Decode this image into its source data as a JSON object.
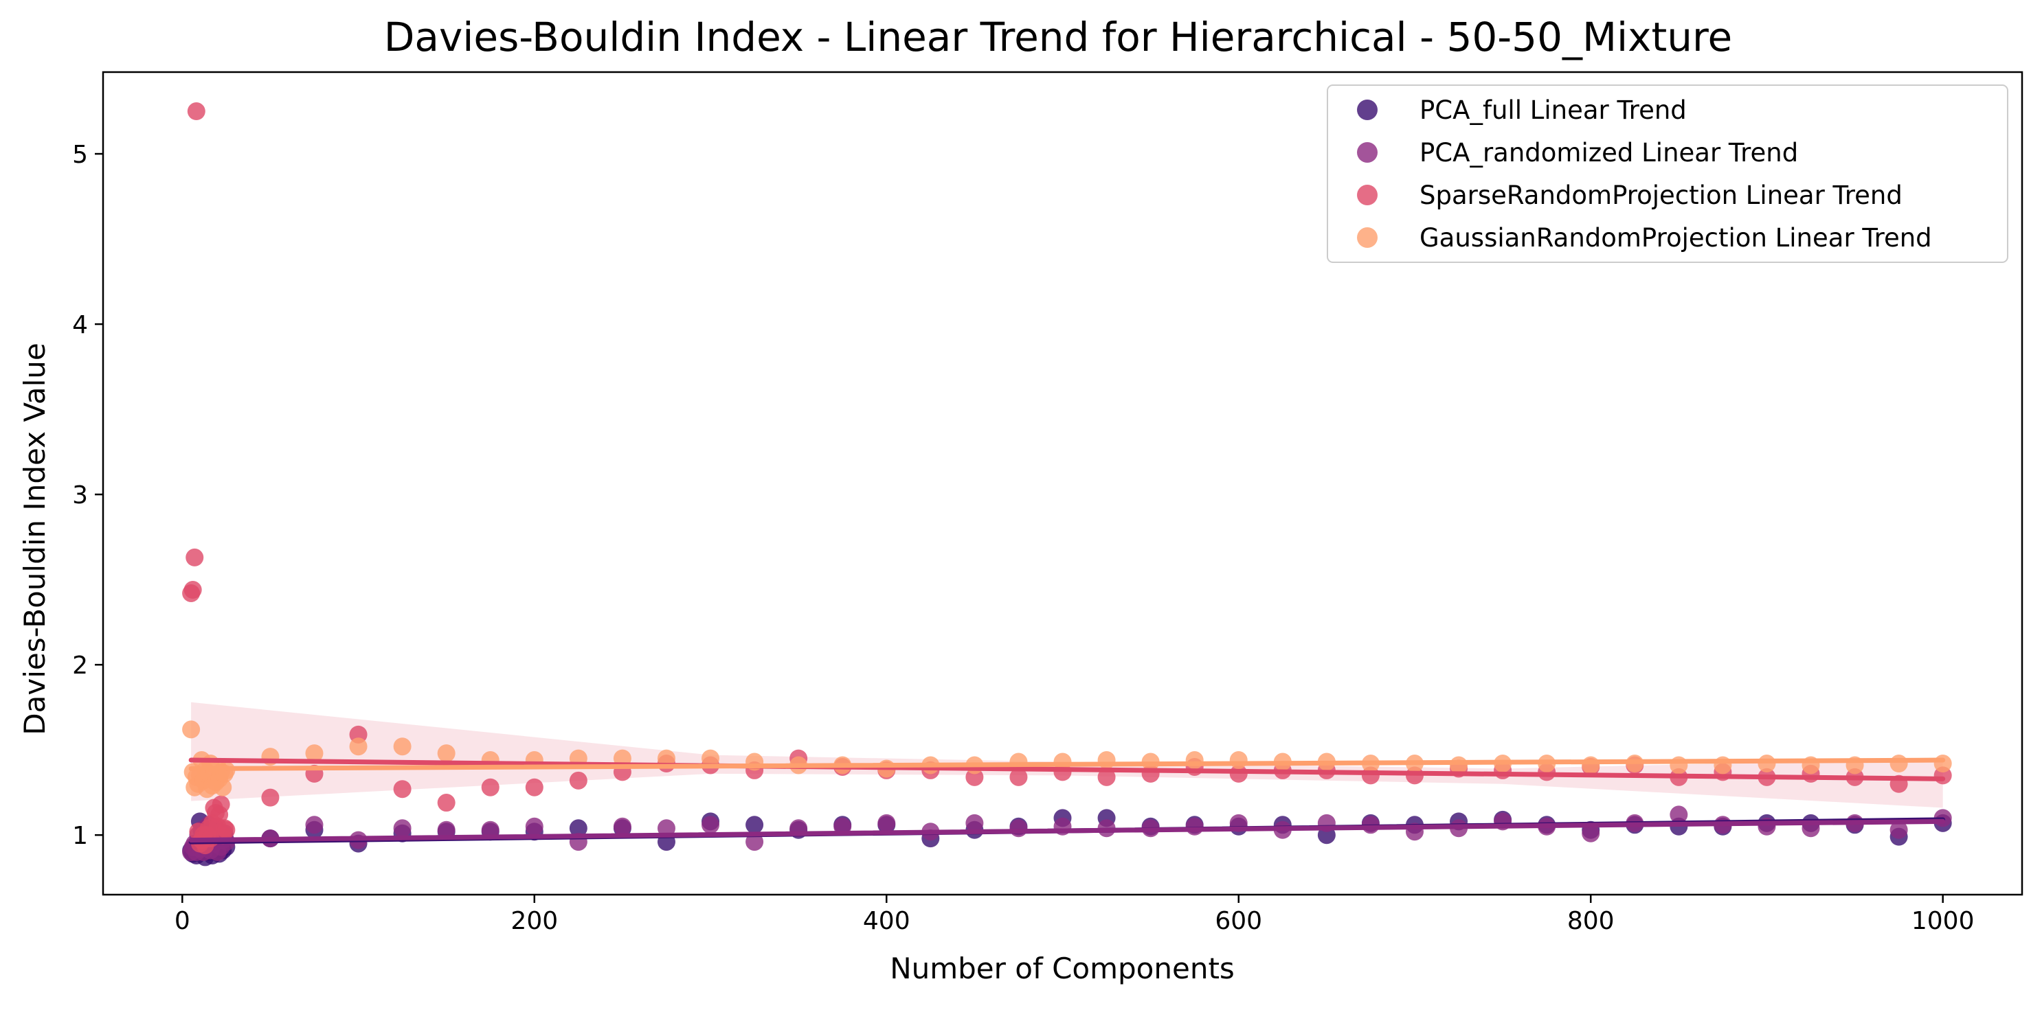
{
  "chart_data": {
    "type": "scatter",
    "title": "Davies-Bouldin Index - Linear Trend for Hierarchical - 50-50_Mixture",
    "xlabel": "Number of Components",
    "ylabel": "Davies-Bouldin Index Value",
    "xlim": [
      -45,
      1045
    ],
    "ylim": [
      0.65,
      5.48
    ],
    "xticks": [
      0,
      200,
      400,
      600,
      800,
      1000
    ],
    "yticks": [
      1,
      2,
      3,
      4,
      5
    ],
    "grid": false,
    "legend": "top-right",
    "series": [
      {
        "name": "PCA_full Linear Trend",
        "color": "#3b0f70",
        "trend": [
          0.96,
          1.09
        ],
        "ci": null,
        "points": [
          [
            5,
            0.91
          ],
          [
            6,
            0.89
          ],
          [
            7,
            0.92
          ],
          [
            8,
            0.88
          ],
          [
            9,
            0.95
          ],
          [
            10,
            1.08
          ],
          [
            11,
            0.9
          ],
          [
            12,
            0.93
          ],
          [
            13,
            0.87
          ],
          [
            14,
            1.02
          ],
          [
            15,
            0.9
          ],
          [
            16,
            0.97
          ],
          [
            17,
            0.88
          ],
          [
            18,
            1.0
          ],
          [
            19,
            0.92
          ],
          [
            20,
            0.94
          ],
          [
            21,
            0.89
          ],
          [
            22,
            0.96
          ],
          [
            23,
            0.91
          ],
          [
            24,
            0.99
          ],
          [
            25,
            0.93
          ],
          [
            50,
            0.98
          ],
          [
            75,
            1.03
          ],
          [
            100,
            0.95
          ],
          [
            125,
            1.01
          ],
          [
            150,
            1.02
          ],
          [
            175,
            1.02
          ],
          [
            200,
            1.02
          ],
          [
            225,
            1.04
          ],
          [
            250,
            1.04
          ],
          [
            275,
            0.96
          ],
          [
            300,
            1.08
          ],
          [
            325,
            1.06
          ],
          [
            350,
            1.03
          ],
          [
            375,
            1.06
          ],
          [
            400,
            1.06
          ],
          [
            425,
            0.98
          ],
          [
            450,
            1.03
          ],
          [
            475,
            1.05
          ],
          [
            500,
            1.1
          ],
          [
            525,
            1.1
          ],
          [
            550,
            1.05
          ],
          [
            575,
            1.06
          ],
          [
            600,
            1.05
          ],
          [
            625,
            1.06
          ],
          [
            650,
            1.0
          ],
          [
            675,
            1.07
          ],
          [
            700,
            1.06
          ],
          [
            725,
            1.08
          ],
          [
            750,
            1.09
          ],
          [
            775,
            1.06
          ],
          [
            800,
            1.03
          ],
          [
            825,
            1.06
          ],
          [
            850,
            1.05
          ],
          [
            875,
            1.05
          ],
          [
            900,
            1.07
          ],
          [
            925,
            1.07
          ],
          [
            950,
            1.06
          ],
          [
            975,
            0.99
          ],
          [
            1000,
            1.07
          ]
        ]
      },
      {
        "name": "PCA_randomized Linear Trend",
        "color": "#8c2981",
        "trend": [
          0.97,
          1.08
        ],
        "ci": null,
        "points": [
          [
            5,
            0.9
          ],
          [
            6,
            0.93
          ],
          [
            7,
            0.95
          ],
          [
            8,
            0.9
          ],
          [
            9,
            1.0
          ],
          [
            10,
            0.92
          ],
          [
            11,
            1.03
          ],
          [
            12,
            0.9
          ],
          [
            13,
            0.98
          ],
          [
            14,
            0.94
          ],
          [
            15,
            1.06
          ],
          [
            16,
            0.91
          ],
          [
            17,
            1.0
          ],
          [
            18,
            0.95
          ],
          [
            19,
            1.04
          ],
          [
            20,
            0.9
          ],
          [
            21,
            1.02
          ],
          [
            22,
            0.93
          ],
          [
            23,
            0.97
          ],
          [
            24,
            1.01
          ],
          [
            25,
            0.96
          ],
          [
            50,
            0.98
          ],
          [
            75,
            1.06
          ],
          [
            100,
            0.97
          ],
          [
            125,
            1.04
          ],
          [
            150,
            1.03
          ],
          [
            175,
            1.03
          ],
          [
            200,
            1.05
          ],
          [
            225,
            0.96
          ],
          [
            250,
            1.05
          ],
          [
            275,
            1.04
          ],
          [
            300,
            1.06
          ],
          [
            325,
            0.96
          ],
          [
            350,
            1.04
          ],
          [
            375,
            1.05
          ],
          [
            400,
            1.07
          ],
          [
            425,
            1.02
          ],
          [
            450,
            1.07
          ],
          [
            475,
            1.04
          ],
          [
            500,
            1.05
          ],
          [
            525,
            1.04
          ],
          [
            550,
            1.04
          ],
          [
            575,
            1.05
          ],
          [
            600,
            1.07
          ],
          [
            625,
            1.03
          ],
          [
            650,
            1.07
          ],
          [
            675,
            1.06
          ],
          [
            700,
            1.02
          ],
          [
            725,
            1.04
          ],
          [
            750,
            1.08
          ],
          [
            775,
            1.05
          ],
          [
            800,
            1.01
          ],
          [
            825,
            1.07
          ],
          [
            850,
            1.12
          ],
          [
            875,
            1.06
          ],
          [
            900,
            1.05
          ],
          [
            925,
            1.04
          ],
          [
            950,
            1.07
          ],
          [
            975,
            1.03
          ],
          [
            1000,
            1.1
          ]
        ]
      },
      {
        "name": "SparseRandomProjection Linear Trend",
        "color": "#de4968",
        "trend": [
          1.44,
          1.33
        ],
        "ci": [
          [
            5,
            1.2,
            1.78
          ],
          [
            300,
            1.36,
            1.47
          ],
          [
            500,
            1.35,
            1.43
          ],
          [
            750,
            1.3,
            1.39
          ],
          [
            1000,
            1.16,
            1.45
          ]
        ],
        "points": [
          [
            5,
            2.42
          ],
          [
            6,
            2.44
          ],
          [
            7,
            2.63
          ],
          [
            8,
            5.25
          ],
          [
            9,
            1.02
          ],
          [
            10,
            0.95
          ],
          [
            11,
            0.97
          ],
          [
            12,
            1.0
          ],
          [
            13,
            0.94
          ],
          [
            14,
            1.0
          ],
          [
            15,
            1.04
          ],
          [
            16,
            0.98
          ],
          [
            17,
            1.07
          ],
          [
            18,
            1.16
          ],
          [
            19,
            1.13
          ],
          [
            20,
            1.05
          ],
          [
            21,
            1.12
          ],
          [
            22,
            1.18
          ],
          [
            23,
            1.0
          ],
          [
            24,
            1.04
          ],
          [
            25,
            1.03
          ],
          [
            50,
            1.22
          ],
          [
            75,
            1.36
          ],
          [
            100,
            1.59
          ],
          [
            125,
            1.27
          ],
          [
            150,
            1.19
          ],
          [
            175,
            1.28
          ],
          [
            200,
            1.28
          ],
          [
            225,
            1.32
          ],
          [
            250,
            1.37
          ],
          [
            275,
            1.42
          ],
          [
            300,
            1.41
          ],
          [
            325,
            1.38
          ],
          [
            350,
            1.45
          ],
          [
            375,
            1.4
          ],
          [
            400,
            1.38
          ],
          [
            425,
            1.38
          ],
          [
            450,
            1.34
          ],
          [
            475,
            1.34
          ],
          [
            500,
            1.37
          ],
          [
            525,
            1.34
          ],
          [
            550,
            1.36
          ],
          [
            575,
            1.4
          ],
          [
            600,
            1.36
          ],
          [
            625,
            1.38
          ],
          [
            650,
            1.38
          ],
          [
            675,
            1.35
          ],
          [
            700,
            1.35
          ],
          [
            725,
            1.39
          ],
          [
            750,
            1.38
          ],
          [
            775,
            1.37
          ],
          [
            800,
            1.4
          ],
          [
            825,
            1.41
          ],
          [
            850,
            1.34
          ],
          [
            875,
            1.37
          ],
          [
            900,
            1.34
          ],
          [
            925,
            1.36
          ],
          [
            950,
            1.34
          ],
          [
            975,
            1.3
          ],
          [
            1000,
            1.35
          ]
        ]
      },
      {
        "name": "GaussianRandomProjection Linear Trend",
        "color": "#fe9f6d",
        "trend": [
          1.39,
          1.44
        ],
        "ci": null,
        "points": [
          [
            5,
            1.62
          ],
          [
            6,
            1.37
          ],
          [
            7,
            1.28
          ],
          [
            8,
            1.34
          ],
          [
            9,
            1.3
          ],
          [
            10,
            1.35
          ],
          [
            11,
            1.44
          ],
          [
            12,
            1.32
          ],
          [
            13,
            1.38
          ],
          [
            14,
            1.27
          ],
          [
            15,
            1.36
          ],
          [
            16,
            1.42
          ],
          [
            17,
            1.29
          ],
          [
            18,
            1.35
          ],
          [
            19,
            1.31
          ],
          [
            20,
            1.4
          ],
          [
            21,
            1.33
          ],
          [
            22,
            1.37
          ],
          [
            23,
            1.28
          ],
          [
            24,
            1.36
          ],
          [
            25,
            1.38
          ],
          [
            50,
            1.46
          ],
          [
            75,
            1.48
          ],
          [
            100,
            1.52
          ],
          [
            125,
            1.52
          ],
          [
            150,
            1.48
          ],
          [
            175,
            1.44
          ],
          [
            200,
            1.44
          ],
          [
            225,
            1.45
          ],
          [
            250,
            1.45
          ],
          [
            275,
            1.45
          ],
          [
            300,
            1.45
          ],
          [
            325,
            1.43
          ],
          [
            350,
            1.41
          ],
          [
            375,
            1.41
          ],
          [
            400,
            1.39
          ],
          [
            425,
            1.41
          ],
          [
            450,
            1.41
          ],
          [
            475,
            1.43
          ],
          [
            500,
            1.43
          ],
          [
            525,
            1.44
          ],
          [
            550,
            1.43
          ],
          [
            575,
            1.44
          ],
          [
            600,
            1.44
          ],
          [
            625,
            1.43
          ],
          [
            650,
            1.43
          ],
          [
            675,
            1.42
          ],
          [
            700,
            1.42
          ],
          [
            725,
            1.41
          ],
          [
            750,
            1.42
          ],
          [
            775,
            1.42
          ],
          [
            800,
            1.41
          ],
          [
            825,
            1.42
          ],
          [
            850,
            1.41
          ],
          [
            875,
            1.41
          ],
          [
            900,
            1.42
          ],
          [
            925,
            1.41
          ],
          [
            950,
            1.41
          ],
          [
            975,
            1.42
          ],
          [
            1000,
            1.42
          ]
        ]
      }
    ]
  }
}
